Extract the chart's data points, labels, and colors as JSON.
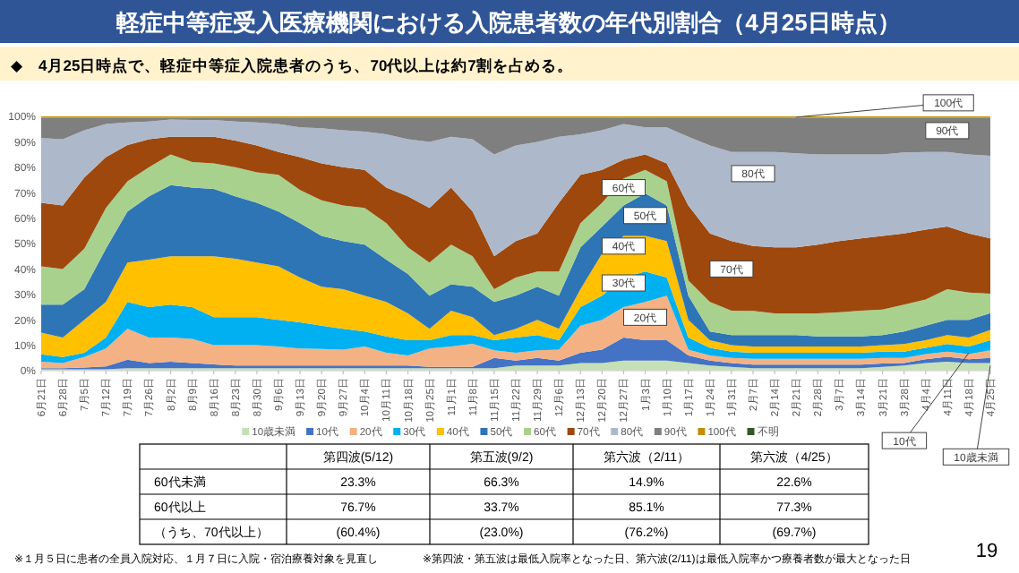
{
  "chart_data": [
    {
      "type": "area",
      "stacked": true,
      "title": "軽症中等症受入医療機関における入院患者数の年代別割合（4月25日時点）",
      "subtitle": "◆　4月25日時点で、軽症中等症入院患者のうち、70代以上は約7割を占める。",
      "categories": [
        "6月21日",
        "6月28日",
        "7月5日",
        "7月12日",
        "7月19日",
        "7月26日",
        "8月2日",
        "8月9日",
        "8月16日",
        "8月23日",
        "8月30日",
        "9月6日",
        "9月13日",
        "9月20日",
        "9月27日",
        "10月4日",
        "10月11日",
        "10月18日",
        "10月25日",
        "11月1日",
        "11月8日",
        "11月15日",
        "11月22日",
        "11月29日",
        "12月6日",
        "12月13日",
        "12月20日",
        "12月27日",
        "1月3日",
        "1月10日",
        "1月17日",
        "1月24日",
        "1月31日",
        "2月7日",
        "2月14日",
        "2月21日",
        "2月28日",
        "3月7日",
        "3月14日",
        "3月21日",
        "3月28日",
        "4月4日",
        "4月11日",
        "4月18日",
        "4月25日"
      ],
      "ylim": [
        0,
        100
      ],
      "yticks": [
        {
          "value": 0,
          "label": "0%"
        },
        {
          "value": 10,
          "label": "10%"
        },
        {
          "value": 20,
          "label": "20%"
        },
        {
          "value": 30,
          "label": "30%"
        },
        {
          "value": 40,
          "label": "40%"
        },
        {
          "value": 50,
          "label": "50%"
        },
        {
          "value": 60,
          "label": "60%"
        },
        {
          "value": 70,
          "label": "70%"
        },
        {
          "value": 80,
          "label": "80%"
        },
        {
          "value": 90,
          "label": "90%"
        },
        {
          "value": 100,
          "label": "100%"
        }
      ],
      "legend": "bottom",
      "series": [
        {
          "name": "10歳未満",
          "color": "#c5e0b4",
          "values": [
            0.5,
            0.5,
            0.5,
            0.5,
            1,
            1,
            1,
            1,
            1,
            1,
            1,
            1,
            1,
            1,
            1,
            1,
            1,
            1,
            1,
            1,
            1,
            1,
            2,
            2,
            2,
            3,
            3,
            4,
            4,
            4,
            3,
            2,
            1.5,
            1,
            1,
            1,
            1,
            1,
            1,
            1.5,
            2,
            3,
            3.5,
            3,
            3
          ]
        },
        {
          "name": "10代",
          "color": "#4472c4",
          "values": [
            0.5,
            0.5,
            0.7,
            1.2,
            3.3,
            2,
            2.5,
            2,
            1.5,
            1,
            1,
            1,
            1,
            1,
            1,
            1,
            1,
            1,
            0.5,
            0.5,
            0.5,
            4,
            2,
            3,
            2,
            4,
            5.3,
            9,
            8,
            8,
            3,
            2,
            1.5,
            1.4,
            1.4,
            1.4,
            1.4,
            1.4,
            1.4,
            1.3,
            1,
            1.5,
            2,
            1.5,
            2
          ]
        },
        {
          "name": "20代",
          "color": "#f4b183",
          "values": [
            2.5,
            2,
            4.2,
            7,
            12.2,
            10,
            9.5,
            9.5,
            7.5,
            8,
            8,
            7.5,
            6.7,
            6.5,
            6.3,
            7.5,
            5,
            4,
            7.2,
            8,
            9.1,
            3,
            3,
            3,
            4.3,
            10.7,
            11.7,
            12,
            15,
            17.5,
            2.3,
            2,
            2,
            2.3,
            2.3,
            2.3,
            2.3,
            2.3,
            2.3,
            2.2,
            2,
            2,
            2,
            2,
            3
          ]
        },
        {
          "name": "30代",
          "color": "#00b0f0",
          "values": [
            2.9,
            2.4,
            1.6,
            4.3,
            10.5,
            12,
            13,
            12.5,
            11,
            11,
            11,
            10.5,
            10.3,
            9.2,
            8.2,
            5.9,
            6.5,
            6,
            3.3,
            4.5,
            3.4,
            4,
            6,
            6,
            3.7,
            7.3,
            9.5,
            11.6,
            12,
            7.1,
            4.7,
            3,
            2.5,
            2.3,
            2.3,
            2.3,
            2.3,
            2.3,
            2.3,
            2.5,
            2.5,
            2.5,
            3,
            3,
            4
          ]
        },
        {
          "name": "40代",
          "color": "#ffc000",
          "values": [
            8.6,
            7.6,
            13,
            14,
            15.5,
            18.7,
            19,
            20,
            24,
            23,
            21.5,
            21,
            17.6,
            15.3,
            15.5,
            14.1,
            13.5,
            10.5,
            4.5,
            9.6,
            7,
            2,
            3.5,
            6,
            4.5,
            7,
            16.5,
            16.4,
            14,
            14.4,
            7,
            3,
            2.5,
            2.5,
            2.5,
            2.5,
            2.5,
            2.5,
            2.5,
            2.5,
            3,
            3,
            3.5,
            3.5,
            4
          ]
        },
        {
          "name": "50代",
          "color": "#2e75b6",
          "values": [
            11,
            13,
            12,
            21,
            20.1,
            24.9,
            28,
            27,
            26.5,
            24.6,
            23.5,
            21.6,
            21.4,
            20,
            19,
            20.1,
            16.7,
            15.5,
            13,
            10.4,
            12,
            13,
            13,
            13,
            13,
            16.5,
            10.7,
            12,
            16.7,
            14,
            9.5,
            3.4,
            4,
            4.5,
            4.5,
            4.5,
            4,
            4,
            4,
            4,
            4.9,
            5.7,
            6,
            7,
            6.6
          ]
        },
        {
          "name": "60代",
          "color": "#a9d18e",
          "values": [
            15,
            14,
            16,
            16,
            11.9,
            11.4,
            12,
            10,
            10,
            11.4,
            12,
            14.4,
            13,
            14,
            14,
            14.4,
            14.3,
            10.5,
            13,
            15.6,
            12,
            5,
            7.1,
            6,
            9.5,
            9.5,
            9.3,
            10.6,
            9.3,
            9.5,
            6,
            11.6,
            9.6,
            9.5,
            8.5,
            8.5,
            9,
            9.5,
            10.1,
            10,
            10.6,
            10.3,
            12,
            10.7,
            7.7
          ]
        },
        {
          "name": "70代",
          "color": "#9e480e",
          "values": [
            25,
            25,
            28,
            20,
            14.2,
            11,
            7,
            10,
            10.5,
            10.5,
            10.6,
            9,
            13,
            14.5,
            15,
            15,
            14,
            20.1,
            21.5,
            22.4,
            17.6,
            13,
            14.4,
            15,
            27,
            19,
            13,
            7.4,
            6,
            7,
            29.5,
            27,
            27.4,
            25.5,
            26,
            26,
            27.1,
            28,
            28.4,
            29,
            28,
            27.5,
            24.7,
            23.3,
            21.7
          ]
        },
        {
          "name": "80代",
          "color": "#adb9ca",
          "values": [
            25.5,
            26,
            18.5,
            13,
            8.9,
            7,
            6.8,
            6.6,
            6.6,
            7.5,
            9,
            11,
            11.7,
            13.8,
            14.5,
            15,
            21,
            22.4,
            26,
            20,
            28.4,
            40,
            37.6,
            36,
            26,
            16,
            15.5,
            14,
            10.7,
            14.2,
            27,
            34.6,
            35,
            37,
            37.5,
            37,
            35.4,
            34,
            33,
            32,
            31.8,
            30.5,
            29.3,
            31,
            32.5
          ]
        },
        {
          "name": "90代",
          "color": "#7f7f7f",
          "values": [
            8,
            8.5,
            5,
            2.5,
            1.9,
            1.5,
            0.7,
            0.9,
            0.9,
            1.5,
            1.9,
            2.5,
            3.8,
            4.2,
            5,
            5.5,
            6.5,
            8.5,
            9.5,
            7.5,
            8.5,
            14.5,
            10.9,
            9.5,
            7.5,
            6.5,
            5,
            2.5,
            3.8,
            3.8,
            7.5,
            10.9,
            13.5,
            13.5,
            13.5,
            14,
            14.5,
            14.5,
            14.5,
            14.5,
            13.7,
            13.5,
            13.5,
            14.5,
            15
          ]
        },
        {
          "name": "100代",
          "color": "#bf9000",
          "values": [
            0.5,
            0.5,
            0.5,
            0.5,
            0.5,
            0.5,
            0.5,
            0.5,
            0.5,
            0.5,
            0.5,
            0.5,
            0.5,
            0.5,
            0.5,
            0.5,
            0.5,
            0.5,
            0.5,
            0.5,
            0.5,
            0.5,
            0.5,
            0.5,
            0.5,
            0.5,
            0.5,
            0.5,
            0.5,
            0.5,
            0.5,
            0.5,
            0.5,
            0.5,
            0.5,
            0.5,
            0.5,
            0.5,
            0.5,
            0.5,
            0.5,
            0.5,
            0.5,
            0.5,
            0.5
          ]
        },
        {
          "name": "不明",
          "color": "#375623",
          "values": [
            null,
            null,
            null,
            null,
            null,
            null,
            null,
            null,
            null,
            null,
            null,
            null,
            null,
            null,
            null,
            null,
            null,
            null,
            null,
            null,
            null,
            null,
            null,
            null,
            null,
            null,
            null,
            null,
            null,
            null,
            null,
            null,
            null,
            null,
            null,
            null,
            null,
            null,
            null,
            null,
            null,
            null,
            null,
            null,
            null
          ]
        }
      ],
      "annotations": [
        {
          "text": "100代",
          "x": "2月21日",
          "y": 99.7
        },
        {
          "text": "90代",
          "x": "4月11日",
          "y": 94.4
        },
        {
          "text": "80代",
          "x": "2月7日",
          "y": 77.5
        },
        {
          "text": "70代",
          "x": "1月31日",
          "y": 40
        },
        {
          "text": "60代",
          "x": "12月27日",
          "y": 72
        },
        {
          "text": "50代",
          "x": "1月3日",
          "y": 61
        },
        {
          "text": "40代",
          "x": "12月27日",
          "y": 49
        },
        {
          "text": "30代",
          "x": "12月27日",
          "y": 34.5
        },
        {
          "text": "20代",
          "x": "1月3日",
          "y": 21
        },
        {
          "text": "10代",
          "x": "4月18日",
          "y": 7
        },
        {
          "text": "10歳未満",
          "x": "4月25日",
          "y": 2
        },
        "※１月５日に患者の全員入院対応、１月７日に入院・宿泊療養対象を見直し",
        "※第四波・第五波は最低入院率となった日、第六波(2/11)は最低入院率かつ療養者数が最大となった日",
        "19"
      ]
    },
    {
      "type": "heatmap",
      "categories": [
        "第四波(5/12)",
        "第五波(9/2)",
        "第六波（2/11）",
        "第六波（4/25）"
      ],
      "y_categories": [
        "60代未満",
        "60代以上",
        "（うち、70代以上）"
      ],
      "cells": [
        [
          23.3,
          66.3,
          14.9,
          22.6
        ],
        [
          76.7,
          33.7,
          85.1,
          77.3
        ],
        [
          60.4,
          23.0,
          76.2,
          69.7
        ]
      ],
      "cell_labels": [
        [
          "23.3%",
          "66.3%",
          "14.9%",
          "22.6%"
        ],
        [
          "76.7%",
          "33.7%",
          "85.1%",
          "77.3%"
        ],
        [
          "(60.4%)",
          "(23.0%)",
          "(76.2%)",
          "(69.7%)"
        ]
      ]
    }
  ]
}
